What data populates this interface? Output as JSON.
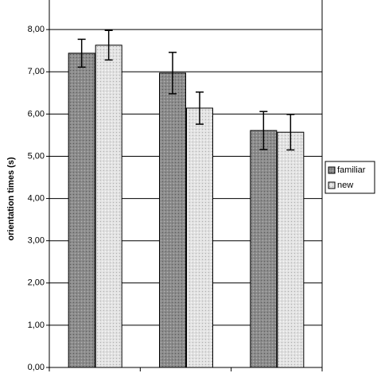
{
  "chart_data": {
    "type": "bar",
    "y_label": "orientation times (s)",
    "categories": [
      null,
      null,
      null
    ],
    "series": [
      {
        "name": "familiar",
        "color": "#8c8c8c",
        "values": [
          7.44,
          6.97,
          5.61
        ],
        "errors": [
          0.33,
          0.49,
          0.45
        ]
      },
      {
        "name": "new",
        "color": "#e2e2e2",
        "values": [
          7.63,
          6.14,
          5.57
        ],
        "errors": [
          0.35,
          0.38,
          0.42
        ]
      }
    ],
    "ylim": [
      0,
      8.7
    ],
    "yticks": [
      {
        "value": 0,
        "label": "0,00"
      },
      {
        "value": 1,
        "label": "1,00"
      },
      {
        "value": 2,
        "label": "2,00"
      },
      {
        "value": 3,
        "label": "3,00"
      },
      {
        "value": 4,
        "label": "4,00"
      },
      {
        "value": 5,
        "label": "5,00"
      },
      {
        "value": 6,
        "label": "6,00"
      },
      {
        "value": 7,
        "label": "7,00"
      },
      {
        "value": 8,
        "label": "8,00"
      }
    ],
    "grid": true,
    "legend": "right"
  }
}
